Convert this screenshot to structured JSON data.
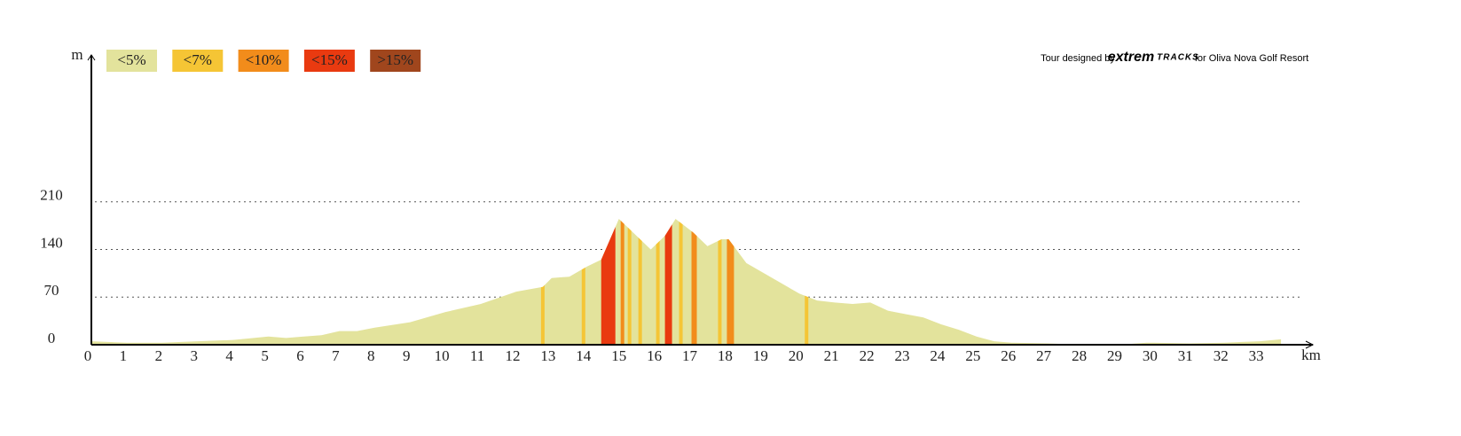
{
  "chart_data": {
    "type": "elevation-profile",
    "y_label": "m",
    "x_label": "km",
    "credit": {
      "prefix": "Tour designed by",
      "brand1": "extrem",
      "brand2": "TRACKS",
      "suffix": "for Oliva Nova Golf Resort"
    },
    "legend": [
      {
        "label": "<5%",
        "color": "#e3e39c"
      },
      {
        "label": "<7%",
        "color": "#f5c535"
      },
      {
        "label": "<10%",
        "color": "#f28c1b"
      },
      {
        "label": "<15%",
        "color": "#e93a10"
      },
      {
        "label": ">15%",
        "color": "#a0461d"
      }
    ],
    "x": [
      0,
      1,
      2,
      3,
      4,
      5,
      5.5,
      6,
      6.5,
      7,
      7.5,
      8,
      9,
      10,
      11,
      12,
      12.75,
      13,
      13.5,
      14,
      14.4,
      14.9,
      15.3,
      15.8,
      16.2,
      16.5,
      17,
      17.4,
      17.8,
      18,
      18.5,
      19,
      19.5,
      20,
      20.5,
      21,
      21.5,
      22,
      22.5,
      23,
      23.5,
      24,
      24.5,
      25,
      25.5,
      26,
      27,
      28,
      29,
      29.8,
      30,
      31,
      32,
      33,
      33.6
    ],
    "values": [
      5,
      3,
      3,
      5,
      7,
      12,
      10,
      12,
      14,
      20,
      20,
      25,
      33,
      48,
      60,
      78,
      85,
      98,
      100,
      115,
      125,
      185,
      165,
      140,
      160,
      185,
      165,
      145,
      155,
      155,
      120,
      105,
      90,
      75,
      65,
      62,
      60,
      62,
      50,
      45,
      40,
      30,
      22,
      12,
      5,
      3,
      2,
      0,
      0,
      3,
      3,
      2,
      3,
      5,
      8
    ],
    "stripes": [
      {
        "from": 12.7,
        "to": 12.8,
        "grade": 1
      },
      {
        "from": 13.85,
        "to": 13.95,
        "grade": 1
      },
      {
        "from": 14.4,
        "to": 14.8,
        "grade": 3
      },
      {
        "from": 14.95,
        "to": 15.05,
        "grade": 2
      },
      {
        "from": 15.15,
        "to": 15.25,
        "grade": 1
      },
      {
        "from": 15.45,
        "to": 15.55,
        "grade": 1
      },
      {
        "from": 15.95,
        "to": 16.05,
        "grade": 1
      },
      {
        "from": 16.2,
        "to": 16.4,
        "grade": 3
      },
      {
        "from": 16.6,
        "to": 16.7,
        "grade": 1
      },
      {
        "from": 16.95,
        "to": 17.1,
        "grade": 2
      },
      {
        "from": 17.7,
        "to": 17.8,
        "grade": 1
      },
      {
        "from": 17.95,
        "to": 18.15,
        "grade": 2
      },
      {
        "from": 20.15,
        "to": 20.25,
        "grade": 1
      }
    ],
    "xlim": [
      0,
      34.5
    ],
    "xticks": [
      0,
      1,
      2,
      3,
      4,
      5,
      6,
      7,
      8,
      9,
      10,
      11,
      12,
      13,
      14,
      15,
      16,
      17,
      18,
      19,
      20,
      21,
      22,
      23,
      24,
      25,
      26,
      27,
      28,
      29,
      30,
      31,
      32,
      33
    ],
    "ylim": [
      0,
      426
    ],
    "yticks": [
      0,
      70,
      140,
      210
    ],
    "grid": true
  }
}
